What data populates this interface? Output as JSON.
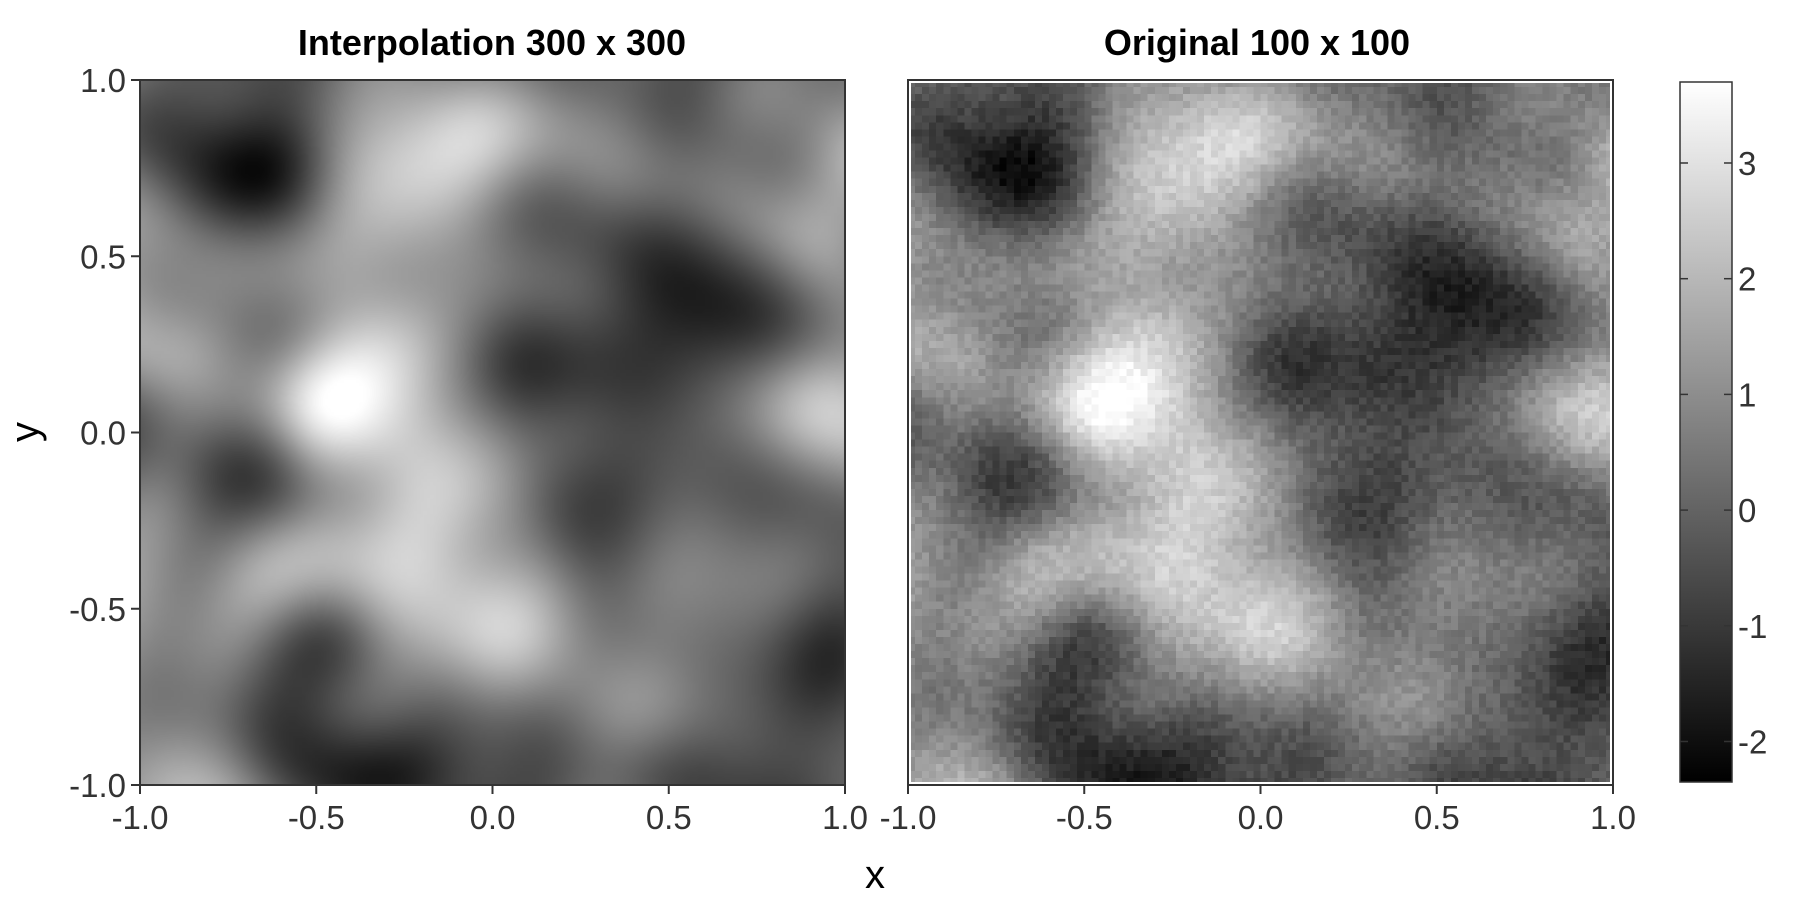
{
  "chart_data": {
    "type": "heatmap",
    "xlabel": "x",
    "ylabel": "y",
    "panels": [
      {
        "title": "Interpolation 300 x 300",
        "resolution": 300,
        "xlim": [
          -1.0,
          1.0
        ],
        "ylim": [
          -1.0,
          1.0
        ],
        "x_ticks": [
          "-1.0",
          "-0.5",
          "0.0",
          "0.5",
          "1.0"
        ],
        "y_ticks": [
          "-1.0",
          "-0.5",
          "0.0",
          "0.5",
          "1.0"
        ]
      },
      {
        "title": "Original 100 x 100",
        "resolution": 100,
        "xlim": [
          -1.0,
          1.0
        ],
        "ylim": [
          -1.0,
          1.0
        ],
        "x_ticks": [
          "-1.0",
          "-0.5",
          "0.0",
          "0.5",
          "1.0"
        ],
        "y_ticks": []
      }
    ],
    "field_features": [
      {
        "x": -0.72,
        "y": 0.72,
        "value": -1.3
      },
      {
        "x": 0.35,
        "y": 0.28,
        "value": -2.0
      },
      {
        "x": 0.62,
        "y": 0.35,
        "value": -2.1
      },
      {
        "x": -0.8,
        "y": -0.1,
        "value": -1.5
      },
      {
        "x": 0.4,
        "y": -0.1,
        "value": -1.0
      },
      {
        "x": -0.5,
        "y": -0.82,
        "value": -1.3
      },
      {
        "x": -0.05,
        "y": -0.82,
        "value": -1.4
      },
      {
        "x": 0.55,
        "y": -0.85,
        "value": -1.0
      },
      {
        "x": 0.85,
        "y": -0.45,
        "value": -0.8
      },
      {
        "x": -0.3,
        "y": 0.0,
        "value": 3.2
      },
      {
        "x": -0.2,
        "y": -0.28,
        "value": 2.7
      },
      {
        "x": -0.95,
        "y": 0.45,
        "value": 2.5
      },
      {
        "x": -0.3,
        "y": 0.8,
        "value": 2.0
      },
      {
        "x": -0.05,
        "y": -0.6,
        "value": 2.2
      },
      {
        "x": 0.88,
        "y": 0.8,
        "value": 1.8
      },
      {
        "x": -0.9,
        "y": -0.9,
        "value": 2.0
      }
    ],
    "colorbar": {
      "ticks": [
        3,
        2,
        1,
        0,
        -1,
        -2
      ],
      "tick_labels": [
        "3",
        "2",
        "1",
        "0",
        "-1",
        "-2"
      ],
      "range": [
        -2.35,
        3.7
      ],
      "low_color": "#000000",
      "high_color": "#ffffff"
    },
    "grid": false,
    "legend_position": "right"
  }
}
